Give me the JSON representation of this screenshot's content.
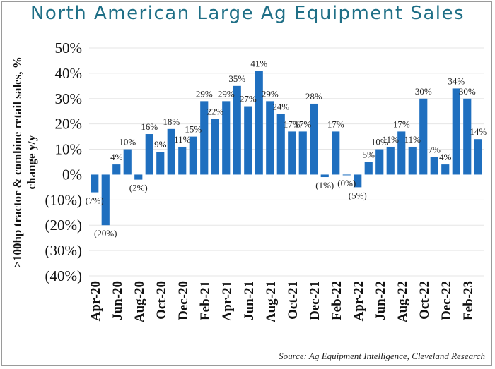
{
  "chart_data": {
    "type": "bar",
    "title": "North American Large Ag Equipment Sales",
    "ylabel": ">100hp tractor & combine retail sales, % change y/y",
    "xlabel": "",
    "ylim": [
      -40,
      50
    ],
    "yticks": [
      50,
      40,
      30,
      20,
      10,
      0,
      -10,
      -20,
      -30,
      -40
    ],
    "ytick_labels": [
      "50%",
      "40%",
      "30%",
      "20%",
      "10%",
      "0%",
      "(10%)",
      "(20%)",
      "(30%)",
      "(40%)"
    ],
    "grid": true,
    "bar_color": "#1f6fbf",
    "categories": [
      "Apr-20",
      "May-20",
      "Jun-20",
      "Jul-20",
      "Aug-20",
      "Sep-20",
      "Oct-20",
      "Nov-20",
      "Dec-20",
      "Jan-21",
      "Feb-21",
      "Mar-21",
      "Apr-21",
      "May-21",
      "Jun-21",
      "Jul-21",
      "Aug-21",
      "Sep-21",
      "Oct-21",
      "Nov-21",
      "Dec-21",
      "Jan-22",
      "Feb-22",
      "Mar-22",
      "Apr-22",
      "May-22",
      "Jun-22",
      "Jul-22",
      "Aug-22",
      "Sep-22",
      "Oct-22",
      "Nov-22",
      "Dec-22",
      "Jan-23",
      "Feb-23",
      "Mar-23"
    ],
    "xtick_labels": [
      "Apr-20",
      "Jun-20",
      "Aug-20",
      "Oct-20",
      "Dec-20",
      "Feb-21",
      "Apr-21",
      "Jun-21",
      "Aug-21",
      "Oct-21",
      "Dec-21",
      "Feb-22",
      "Apr-22",
      "Jun-22",
      "Aug-22",
      "Oct-22",
      "Dec-22",
      "Feb-23"
    ],
    "values": [
      -7,
      -20,
      4,
      10,
      -2,
      16,
      9,
      18,
      11,
      15,
      29,
      22,
      29,
      35,
      27,
      41,
      29,
      24,
      17,
      17,
      28,
      -1,
      17,
      -0.2,
      -5,
      5,
      10,
      11,
      17,
      11,
      30,
      7,
      4,
      34,
      30,
      14
    ],
    "data_labels": [
      "(7%)",
      "(20%)",
      "4%",
      "10%",
      "(2%)",
      "16%",
      "9%",
      "18%",
      "11%",
      "15%",
      "29%",
      "22%",
      "29%",
      "35%",
      "27%",
      "41%",
      "29%",
      "24%",
      "17%",
      "17%",
      "28%",
      "(1%)",
      "17%",
      "(0%)",
      "(5%)",
      "5%",
      "10%",
      "11%",
      "17%",
      "11%",
      "30%",
      "7%",
      "4%",
      "34%",
      "30%",
      "14%"
    ],
    "source": "Source: Ag Equipment Intelligence, Cleveland Research"
  }
}
